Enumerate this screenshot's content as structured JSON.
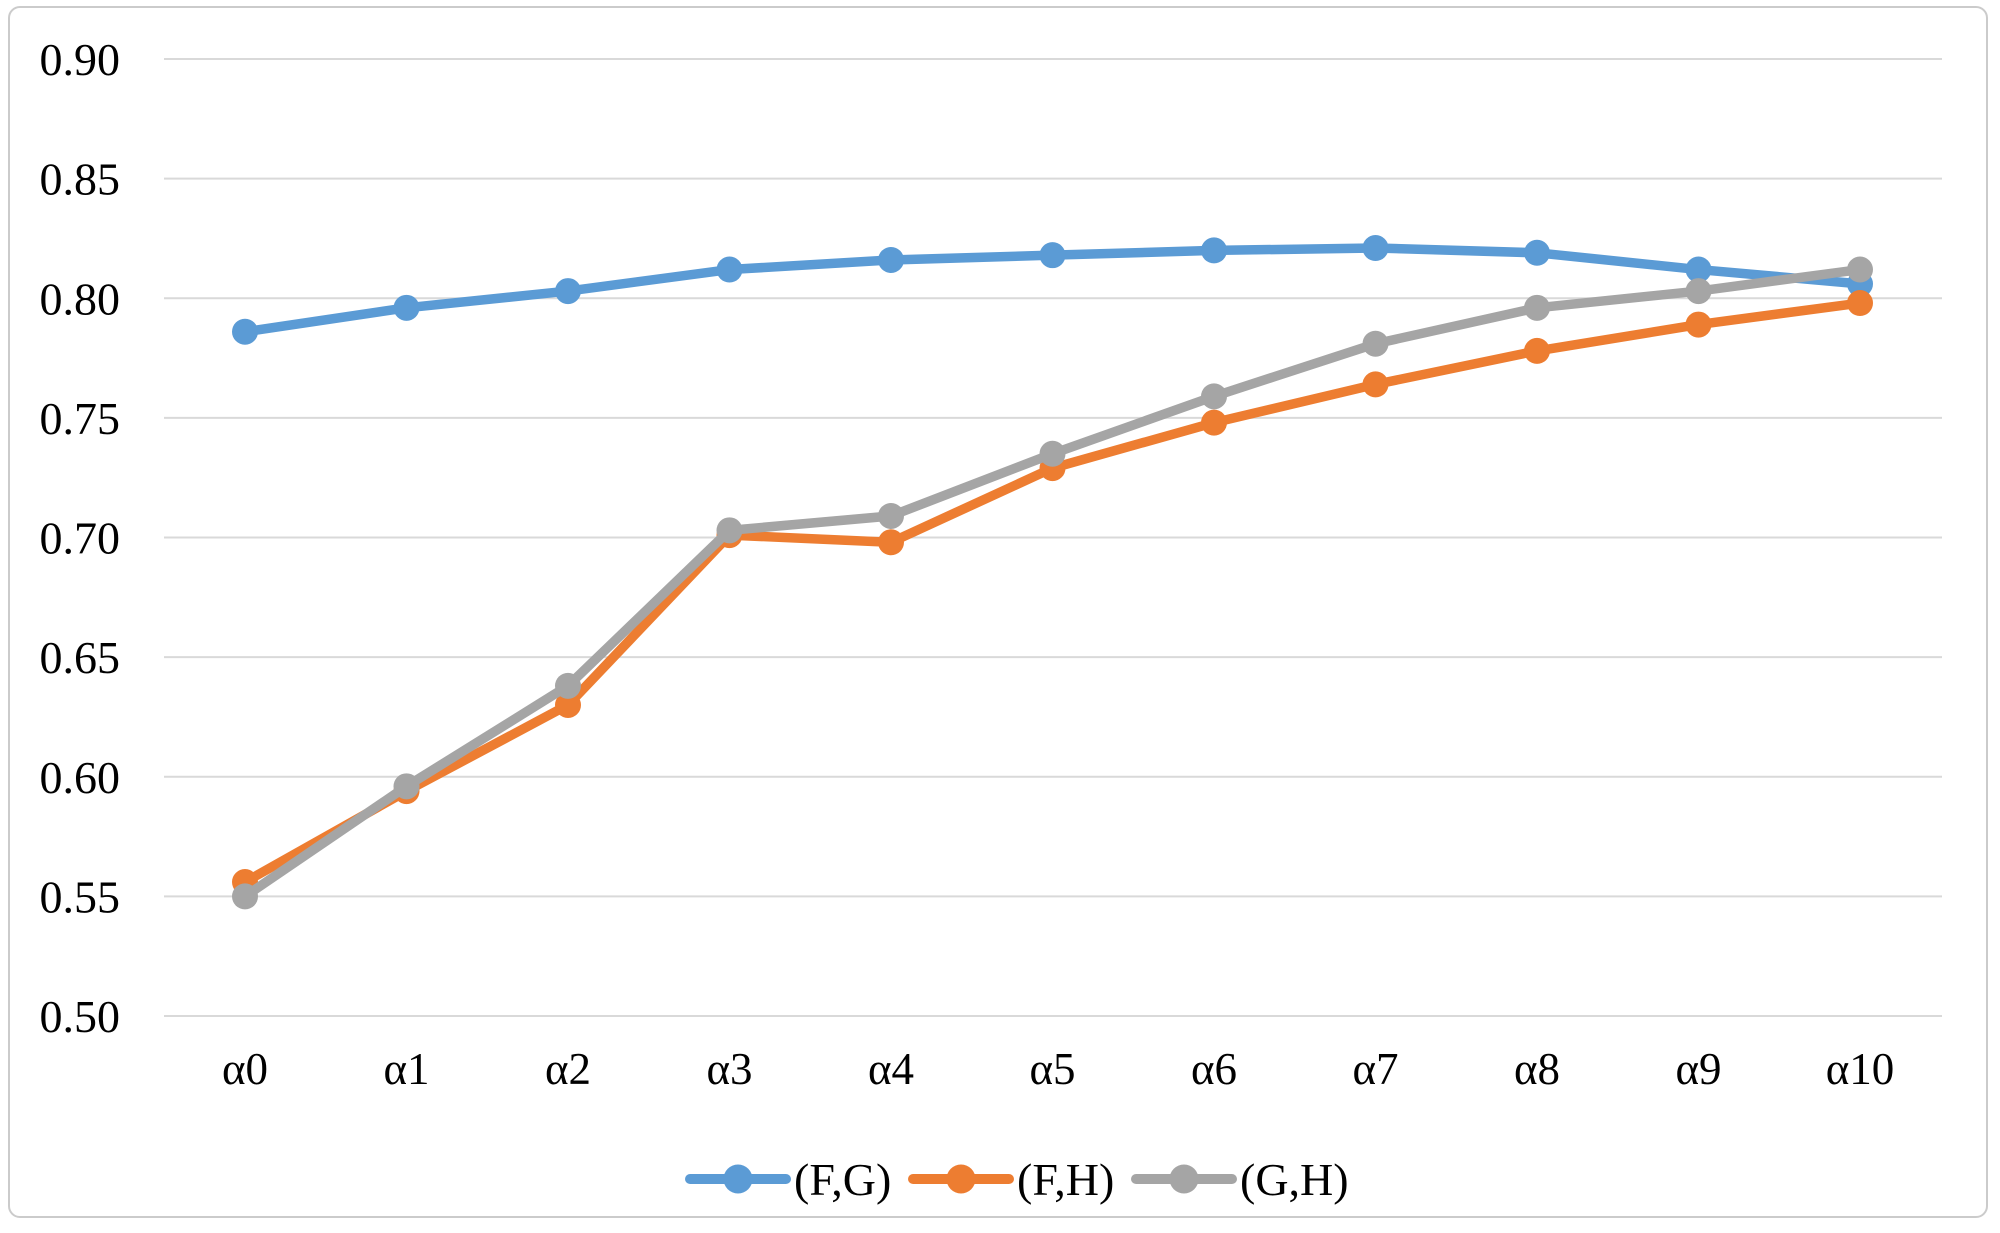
{
  "chart_data": {
    "type": "line",
    "categories": [
      "α0",
      "α1",
      "α2",
      "α3",
      "α4",
      "α5",
      "α6",
      "α7",
      "α8",
      "α9",
      "α10"
    ],
    "series": [
      {
        "name": "(F,G)",
        "color": "#5B9BD5",
        "values": [
          0.786,
          0.796,
          0.803,
          0.812,
          0.816,
          0.818,
          0.82,
          0.821,
          0.819,
          0.812,
          0.806
        ]
      },
      {
        "name": "(F,H)",
        "color": "#ED7D31",
        "values": [
          0.556,
          0.594,
          0.63,
          0.701,
          0.698,
          0.729,
          0.748,
          0.764,
          0.778,
          0.789,
          0.798
        ]
      },
      {
        "name": "(G,H)",
        "color": "#A5A5A5",
        "values": [
          0.55,
          0.596,
          0.638,
          0.703,
          0.709,
          0.735,
          0.759,
          0.781,
          0.796,
          0.803,
          0.812
        ]
      }
    ],
    "title": "",
    "xlabel": "",
    "ylabel": "",
    "ylim": [
      0.5,
      0.9
    ],
    "y_ticks": [
      {
        "label": "0.90",
        "value": 0.9
      },
      {
        "label": "0.85",
        "value": 0.85
      },
      {
        "label": "0.80",
        "value": 0.8
      },
      {
        "label": "0.75",
        "value": 0.75
      },
      {
        "label": "0.70",
        "value": 0.7
      },
      {
        "label": "0.65",
        "value": 0.65
      },
      {
        "label": "0.60",
        "value": 0.6
      },
      {
        "label": "0.55",
        "value": 0.55
      },
      {
        "label": "0.50",
        "value": 0.5
      }
    ],
    "grid": true,
    "legend_position": "bottom",
    "gridline_color": "#D9D9D9",
    "border_color": "#CBCBCB",
    "text_color": "#000000"
  }
}
